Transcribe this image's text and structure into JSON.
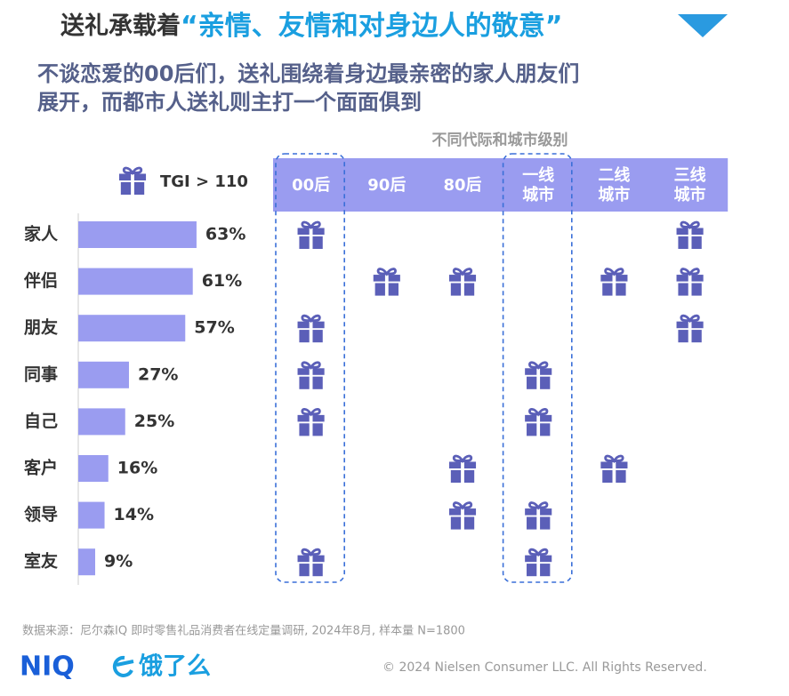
{
  "title": "送礼承载着",
  "title_highlight": "“亲情、友情和对身边人的敬意”",
  "subtitle_lines": [
    "不谈恋爱的00后们，送礼围绕着身边最亲密的家人朋友们",
    "展开，而都市人送礼则主打一个面面俱到"
  ],
  "chart_data": {
    "type": "bar",
    "orientation": "horizontal",
    "color": "#9a9cf0",
    "categories": [
      "家人",
      "伴侣",
      "朋友",
      "同事",
      "自己",
      "客户",
      "领导",
      "室友"
    ],
    "values": [
      63,
      61,
      57,
      27,
      25,
      16,
      14,
      9
    ],
    "value_labels": [
      "63%",
      "61%",
      "57%",
      "27%",
      "25%",
      "16%",
      "14%",
      "9%"
    ]
  },
  "tgi_matrix": {
    "title": "不同代际和城市级别",
    "legend": "TGI > 110",
    "icon_color": "#5b5fb8",
    "header_color": "#9a9cf0",
    "columns": [
      [
        "00后"
      ],
      [
        "90后"
      ],
      [
        "80后"
      ],
      [
        "一线",
        "城市"
      ],
      [
        "二线",
        "城市"
      ],
      [
        "三线",
        "城市"
      ]
    ],
    "highlighted_columns": [
      0,
      3
    ],
    "cells": [
      [
        true,
        false,
        false,
        false,
        false,
        true
      ],
      [
        false,
        true,
        true,
        false,
        true,
        true
      ],
      [
        true,
        false,
        false,
        false,
        false,
        true
      ],
      [
        true,
        false,
        false,
        true,
        false,
        false
      ],
      [
        true,
        false,
        false,
        true,
        false,
        false
      ],
      [
        false,
        false,
        true,
        false,
        true,
        false
      ],
      [
        false,
        false,
        true,
        true,
        false,
        false
      ],
      [
        true,
        false,
        false,
        true,
        false,
        false
      ]
    ]
  },
  "footer": {
    "source": "数据来源：尼尔森IQ 即时零售礼品消费者在线定量调研, 2024年8月, 样本量 N=1800",
    "logos": [
      "NIQ",
      "饿了么"
    ],
    "copyright": "© 2024 Nielsen Consumer LLC. All Rights Reserved."
  }
}
